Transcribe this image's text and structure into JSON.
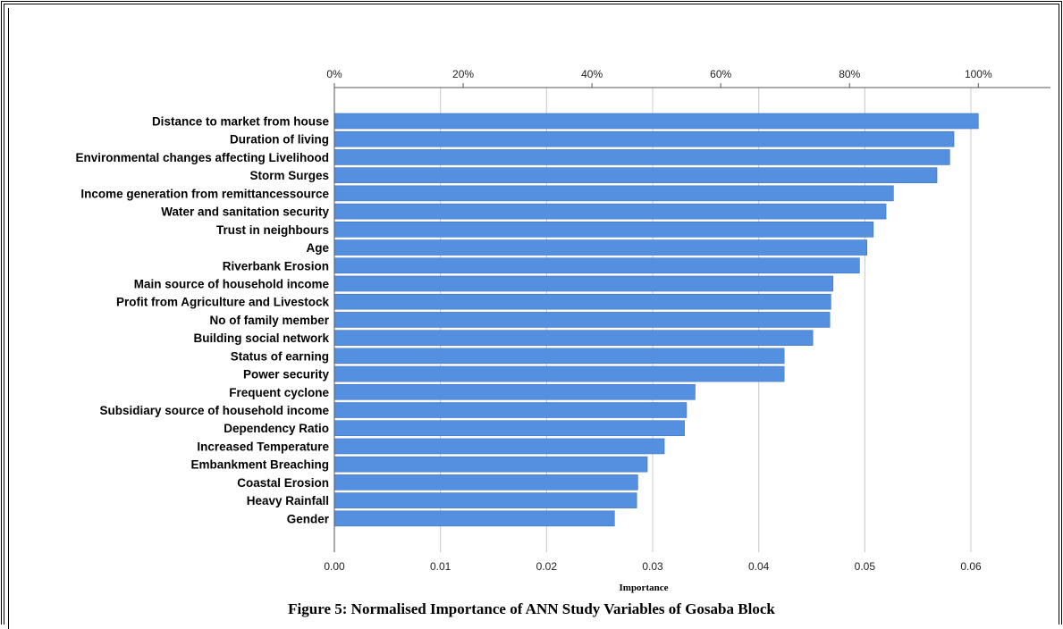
{
  "chart_data": {
    "type": "bar",
    "orientation": "horizontal",
    "categories": [
      "Distance to market from house",
      "Duration of living",
      "Environmental changes affecting Livelihood",
      "Storm Surges",
      "Income generation from remittancessource",
      "Water and sanitation security",
      "Trust in neighbours",
      "Age",
      "Riverbank Erosion",
      "Main source of household income",
      "Profit from Agriculture and Livestock",
      "No of family member",
      "Building social network",
      "Status of earning",
      "Power security",
      "Frequent cyclone",
      "Subsidiary source of household income",
      "Dependency Ratio",
      "Increased Temperature",
      "Embankment Breaching",
      "Coastal Erosion",
      "Heavy Rainfall",
      "Gender"
    ],
    "values": [
      0.0607,
      0.0584,
      0.058,
      0.0568,
      0.0527,
      0.052,
      0.0508,
      0.0502,
      0.0495,
      0.047,
      0.0468,
      0.0467,
      0.0451,
      0.0424,
      0.0424,
      0.034,
      0.0332,
      0.033,
      0.0311,
      0.0295,
      0.0286,
      0.0285,
      0.0264
    ],
    "xlabel": "Importance",
    "xlim": [
      0,
      0.0675
    ],
    "bottom_ticks": [
      "0.00",
      "0.01",
      "0.02",
      "0.03",
      "0.04",
      "0.05",
      "0.06"
    ],
    "bottom_tick_values": [
      0,
      0.01,
      0.02,
      0.03,
      0.04,
      0.05,
      0.06
    ],
    "top_ticks": [
      "0%",
      "20%",
      "40%",
      "60%",
      "80%",
      "100%"
    ],
    "top_tick_percents": [
      0,
      20,
      40,
      60,
      80,
      100
    ],
    "top_axis_max_value": 0.0607,
    "grid": true,
    "bar_color": "#5590e0",
    "bar_edge_color": "#3f72c0",
    "grid_color": "#c8c8c8"
  },
  "caption": "Figure 5: Normalised Importance of ANN Study Variables of Gosaba Block"
}
